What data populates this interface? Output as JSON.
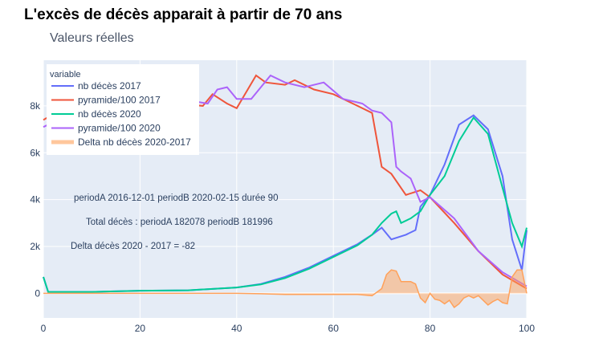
{
  "title": "L'excès de décès apparait à partir de 70 ans",
  "chart_data": {
    "type": "line",
    "title": "Valeurs réelles",
    "xlim": [
      0,
      100
    ],
    "ylim": [
      -1050,
      9950
    ],
    "xticks": [
      0,
      20,
      40,
      60,
      80,
      100
    ],
    "yticks": [
      {
        "v": 0,
        "label": "0"
      },
      {
        "v": 2000,
        "label": "2k"
      },
      {
        "v": 4000,
        "label": "4k"
      },
      {
        "v": 6000,
        "label": "6k"
      },
      {
        "v": 8000,
        "label": "8k"
      }
    ],
    "legend": {
      "title": "variable",
      "placement": "top-left"
    },
    "annotations": [
      "periodA 2016-12-01 periodB 2020-02-15 durée 90",
      "Total décès : periodA 182078 periodB 181996",
      "Delta décès 2020 - 2017 = -82"
    ],
    "series": [
      {
        "name": "nb décès 2017",
        "color": "#636efa",
        "x": [
          0,
          1,
          10,
          20,
          30,
          40,
          45,
          50,
          55,
          60,
          65,
          68,
          70,
          72,
          75,
          77,
          78,
          80,
          83,
          86,
          89,
          92,
          95,
          97,
          99,
          100
        ],
        "y": [
          700,
          60,
          60,
          110,
          130,
          250,
          400,
          700,
          1100,
          1600,
          2100,
          2500,
          2800,
          2300,
          2500,
          2700,
          3700,
          4200,
          5500,
          7200,
          7600,
          7000,
          5000,
          2300,
          1000,
          2700
        ]
      },
      {
        "name": "pyramide/100 2017",
        "color": "#ef553b",
        "x": [
          0,
          5,
          10,
          20,
          28,
          33,
          35,
          38,
          40,
          44,
          46,
          50,
          52,
          56,
          60,
          65,
          68,
          70,
          72,
          75,
          78,
          80,
          85,
          90,
          95,
          100
        ],
        "y": [
          7400,
          8000,
          8100,
          8300,
          8100,
          8000,
          8500,
          8100,
          7900,
          9300,
          9000,
          8900,
          9100,
          8700,
          8500,
          8000,
          7700,
          5400,
          5100,
          4200,
          4400,
          4100,
          3000,
          1800,
          800,
          200
        ]
      },
      {
        "name": "nb décès 2020",
        "color": "#00cc96",
        "x": [
          0,
          1,
          10,
          20,
          30,
          40,
          45,
          50,
          55,
          60,
          65,
          68,
          70,
          72,
          73,
          74,
          76,
          78,
          80,
          83,
          86,
          89,
          92,
          95,
          97,
          99,
          100
        ],
        "y": [
          700,
          60,
          60,
          110,
          130,
          250,
          380,
          650,
          1050,
          1550,
          2050,
          2500,
          3000,
          3400,
          3500,
          3000,
          3200,
          3500,
          4200,
          5000,
          6500,
          7500,
          6800,
          4500,
          3000,
          2000,
          2800
        ]
      },
      {
        "name": "pyramide/100 2020",
        "color": "#ab63fa",
        "x": [
          0,
          5,
          10,
          20,
          28,
          34,
          36,
          38,
          40,
          43,
          47,
          50,
          54,
          58,
          62,
          66,
          68,
          70,
          72,
          73,
          74,
          76,
          78,
          80,
          85,
          90,
          95,
          100
        ],
        "y": [
          7100,
          7600,
          7800,
          8000,
          8300,
          8100,
          8700,
          8800,
          8300,
          8300,
          9300,
          9000,
          8800,
          9000,
          8300,
          8100,
          7800,
          7700,
          7300,
          5400,
          5200,
          4900,
          3900,
          4100,
          3200,
          1800,
          900,
          300
        ]
      },
      {
        "name": "Delta nb décès 2020-2017",
        "color": "#ffa15a",
        "fill": true,
        "x": [
          0,
          10,
          20,
          30,
          40,
          45,
          50,
          55,
          60,
          65,
          68,
          70,
          71,
          72,
          73,
          74,
          76,
          77,
          78,
          79,
          80,
          81,
          82,
          83,
          84,
          85,
          86,
          87,
          88,
          89,
          90,
          91,
          92,
          93,
          94,
          95,
          96,
          97,
          98,
          99,
          100
        ],
        "y": [
          0,
          0,
          0,
          0,
          0,
          -20,
          -50,
          -50,
          -50,
          -50,
          -100,
          200,
          800,
          1000,
          950,
          500,
          500,
          400,
          -200,
          -400,
          0,
          -250,
          -300,
          -450,
          -300,
          -600,
          -450,
          -200,
          -100,
          -200,
          -100,
          -300,
          -500,
          -350,
          -250,
          -400,
          -450,
          700,
          1000,
          1000,
          0
        ]
      }
    ]
  }
}
